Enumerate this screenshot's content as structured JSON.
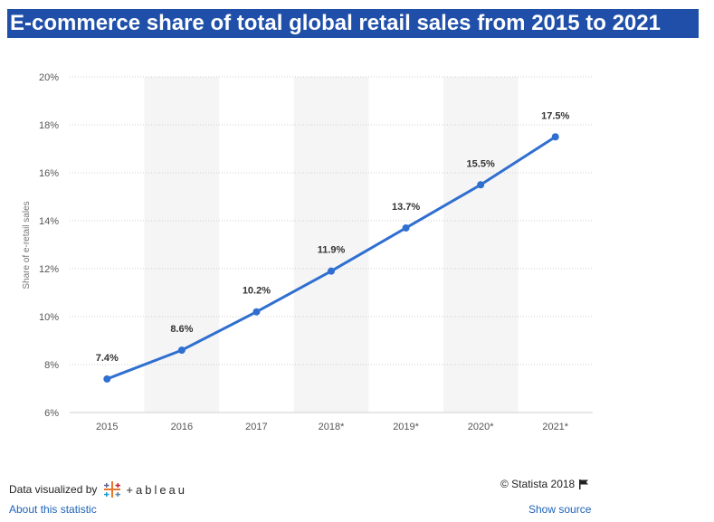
{
  "title": "E-commerce share of total global retail sales from 2015 to 2021",
  "footer": {
    "data_visualized_by": "Data visualized by",
    "tableau_word": "+ableau",
    "about_link": "About this statistic",
    "copyright": "© Statista 2018",
    "show_source_link": "Show source"
  },
  "colors": {
    "accent": "#2f6fd0",
    "title_bg": "#1f4fa8",
    "band": "#f5f5f5",
    "link": "#1f63b8"
  },
  "chart_data": {
    "type": "line",
    "categories": [
      "2015",
      "2016",
      "2017",
      "2018*",
      "2019*",
      "2020*",
      "2021*"
    ],
    "values": [
      7.4,
      8.6,
      10.2,
      11.9,
      13.7,
      15.5,
      17.5
    ],
    "data_labels": [
      "7.4%",
      "8.6%",
      "10.2%",
      "11.9%",
      "13.7%",
      "15.5%",
      "17.5%"
    ],
    "ylabel": "Share of e-retail sales",
    "xlabel": "",
    "ylim": [
      6,
      20
    ],
    "yticks": [
      "6%",
      "8%",
      "10%",
      "12%",
      "14%",
      "16%",
      "18%",
      "20%"
    ],
    "grid": true,
    "alternating_bands": true
  }
}
